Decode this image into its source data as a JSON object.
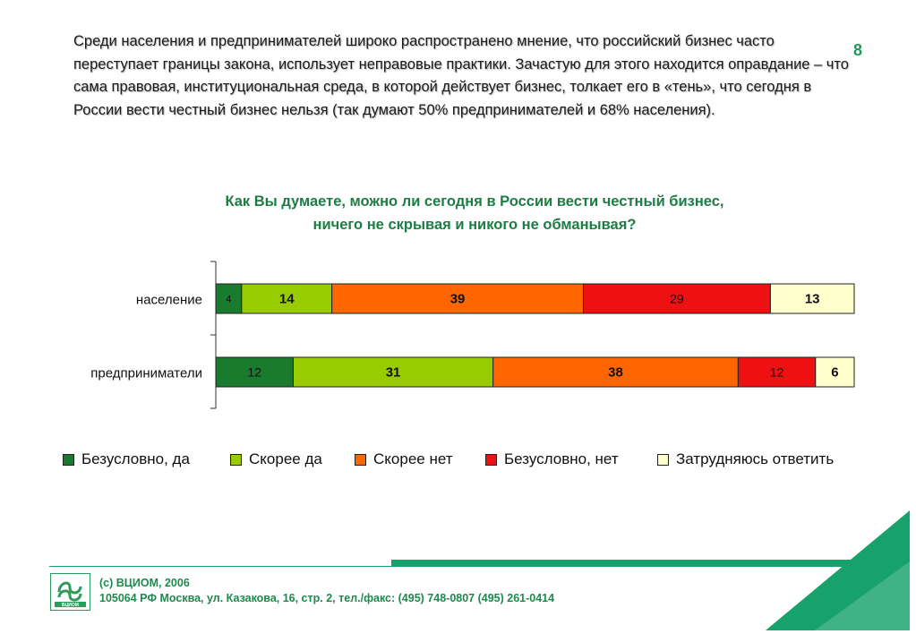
{
  "intro_text": "Среди населения и предпринимателей широко распространено мнение, что российский бизнес часто переступает границы закона, использует неправовые практики. Зачастую для этого находится оправдание – что сама правовая, институциональная среда, в которой действует бизнес, толкает его в «тень», что сегодня в России вести честный бизнес нельзя (так думают 50% предпринимателей и 68% населения).",
  "page_number": "8",
  "question_line1": "Как Вы думаете, можно ли сегодня в России вести честный бизнес,",
  "question_line2": "ничего не скрывая и никого не обманывая?",
  "chart_data": {
    "type": "bar",
    "orientation": "horizontal",
    "stacked": true,
    "categories": [
      "население",
      "предприниматели"
    ],
    "series": [
      {
        "name": "Безусловно, да",
        "color": "#1a7a2e",
        "values": [
          4,
          12
        ]
      },
      {
        "name": "Скорее да",
        "color": "#99cc00",
        "values": [
          14,
          31
        ]
      },
      {
        "name": "Скорее нет",
        "color": "#ff6600",
        "values": [
          39,
          38
        ]
      },
      {
        "name": "Безусловно, нет",
        "color": "#ee1111",
        "values": [
          29,
          12
        ]
      },
      {
        "name": "Затрудняюсь ответить",
        "color": "#ffffcc",
        "values": [
          13,
          6
        ]
      }
    ],
    "xlim": [
      0,
      99
    ],
    "grid": false,
    "legend_position": "bottom"
  },
  "footer": {
    "copyright": "(с) ВЦИОМ, 2006",
    "address": "105064 РФ Москва, ул. Казакова, 16, стр. 2, тел./факс: (495) 748-0807 (495) 261-0414",
    "logo_text": "ВЦИОМ",
    "accent_color": "#17a26b"
  }
}
